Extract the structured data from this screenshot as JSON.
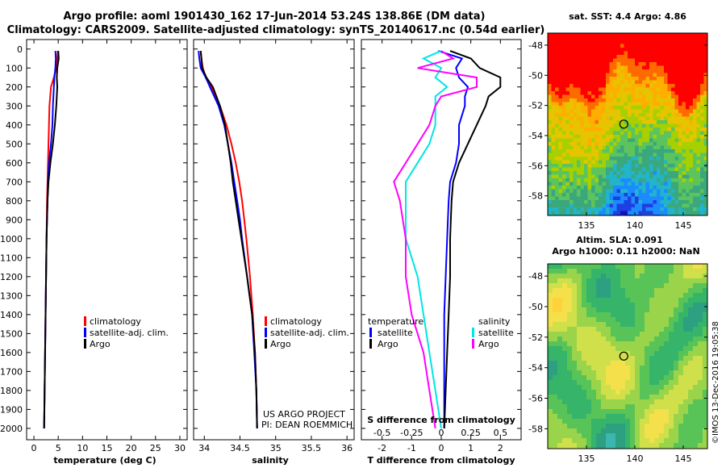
{
  "header": {
    "line1": "Argo profile: aoml 1901430_162 17-Jun-2014 53.24S 138.86E (DM data)",
    "line2": "Climatology: CARS2009. Satellite-adjusted climatology: synTS_20140617.nc (0.54d earlier)"
  },
  "colors": {
    "climatology": "#ff0000",
    "satellite": "#0000ff",
    "argo": "#000000",
    "satellite_s": "#00e5e5",
    "argo_s": "#ff00ff"
  },
  "depth_axis": {
    "ticks": [
      0,
      100,
      200,
      300,
      400,
      500,
      600,
      700,
      800,
      900,
      1000,
      1100,
      1200,
      1300,
      1400,
      1500,
      1600,
      1700,
      1800,
      1900,
      2000
    ],
    "range": [
      -50,
      2060
    ]
  },
  "chart_data": [
    {
      "type": "line",
      "id": "temperature",
      "xlabel": "temperature (deg C)",
      "xlim": [
        -1.5,
        31.5
      ],
      "xticks": [
        0,
        5,
        10,
        15,
        20,
        25,
        30
      ],
      "legend": [
        "climatology",
        "satellite-adj. clim.",
        "Argo"
      ],
      "depth": [
        10,
        50,
        100,
        150,
        200,
        300,
        400,
        500,
        600,
        700,
        800,
        1000,
        1200,
        1400,
        1600,
        1800,
        2000
      ],
      "series": [
        {
          "name": "climatology",
          "values": [
            4.9,
            4.8,
            4.6,
            4.1,
            3.5,
            3.2,
            3.1,
            3.0,
            2.9,
            2.8,
            2.7,
            2.6,
            2.5,
            2.4,
            2.3,
            2.2,
            2.1
          ]
        },
        {
          "name": "satellite-adj. clim.",
          "values": [
            4.4,
            4.5,
            4.4,
            4.2,
            4.1,
            3.9,
            3.8,
            3.5,
            3.1,
            2.9,
            2.8,
            2.6,
            2.5,
            2.4,
            2.3,
            2.2,
            2.1
          ]
        },
        {
          "name": "Argo",
          "values": [
            5.0,
            5.1,
            4.8,
            4.7,
            4.8,
            4.6,
            4.3,
            3.9,
            3.4,
            3.0,
            2.8,
            2.6,
            2.5,
            2.4,
            2.3,
            2.2,
            2.1
          ]
        }
      ]
    },
    {
      "type": "line",
      "id": "salinity",
      "xlabel": "salinity",
      "xlim": [
        33.85,
        36.1
      ],
      "xticks": [
        34,
        34.5,
        35,
        35.5,
        36
      ],
      "xticklabels": [
        "34",
        "34.5",
        "35",
        "35.5",
        "36"
      ],
      "legend": [
        "climatology",
        "satellite-adj. clim.",
        "Argo"
      ],
      "depth": [
        10,
        50,
        100,
        150,
        200,
        300,
        400,
        500,
        600,
        700,
        800,
        900,
        1000,
        1200,
        1400,
        1600,
        1800,
        2000
      ],
      "series": [
        {
          "name": "climatology",
          "values": [
            33.95,
            33.96,
            33.98,
            34.02,
            34.1,
            34.22,
            34.31,
            34.38,
            34.44,
            34.49,
            34.53,
            34.56,
            34.59,
            34.64,
            34.68,
            34.71,
            34.73,
            34.74
          ]
        },
        {
          "name": "satellite-adj. clim.",
          "values": [
            33.92,
            33.93,
            33.95,
            34.02,
            34.08,
            34.2,
            34.28,
            34.33,
            34.38,
            34.42,
            34.46,
            34.5,
            34.53,
            34.6,
            34.67,
            34.7,
            34.73,
            34.74
          ]
        },
        {
          "name": "Argo",
          "values": [
            33.95,
            33.96,
            33.97,
            34.03,
            34.12,
            34.22,
            34.29,
            34.33,
            34.37,
            34.4,
            34.44,
            34.48,
            34.52,
            34.6,
            34.67,
            34.71,
            34.73,
            34.74
          ]
        }
      ]
    },
    {
      "type": "line",
      "id": "difference",
      "xlabel": "T difference from climatology",
      "sublabel": "S difference from climatology",
      "xlim": [
        -2.7,
        2.7
      ],
      "xticks": [
        -2,
        -1,
        0,
        1,
        2
      ],
      "s_ticks": [
        "-0.5",
        "-0.25",
        "0",
        "0.25",
        "0.5"
      ],
      "legend_left_title": "temperature",
      "legend_right_title": "salinity",
      "legend_left": [
        "satellite",
        "Argo"
      ],
      "legend_right": [
        "satellite",
        "Argo"
      ],
      "depth": [
        10,
        50,
        100,
        150,
        200,
        250,
        300,
        400,
        500,
        600,
        700,
        800,
        1000,
        1200,
        1400,
        1600,
        1800,
        2000
      ],
      "series": [
        {
          "name": "T satellite",
          "values": [
            -0.1,
            0.7,
            0.5,
            0.6,
            0.9,
            0.8,
            0.8,
            0.6,
            0.6,
            0.5,
            0.3,
            0.25,
            0.2,
            0.15,
            0.1,
            0.1,
            0.1,
            0.1
          ]
        },
        {
          "name": "T Argo",
          "values": [
            0.3,
            1.0,
            1.3,
            2.0,
            2.0,
            1.6,
            1.5,
            1.2,
            0.9,
            0.6,
            0.4,
            0.35,
            0.3,
            0.3,
            0.25,
            0.2,
            0.15,
            0.1
          ]
        },
        {
          "name": "S satellite",
          "values": [
            0.0,
            -0.15,
            0.0,
            -0.05,
            0.05,
            -0.05,
            -0.05,
            -0.05,
            -0.1,
            -0.2,
            -0.3,
            -0.3,
            -0.3,
            -0.2,
            -0.15,
            -0.1,
            -0.05,
            0.0
          ]
        },
        {
          "name": "S Argo",
          "values": [
            0.0,
            0.1,
            -0.2,
            0.3,
            0.3,
            0.0,
            -0.05,
            -0.1,
            -0.2,
            -0.3,
            -0.4,
            -0.35,
            -0.3,
            -0.3,
            -0.25,
            -0.15,
            -0.1,
            -0.05
          ]
        }
      ]
    },
    {
      "type": "heatmap",
      "id": "sst_map",
      "title": "sat. SST: 4.4 Argo: 4.86",
      "xlim": [
        131,
        147.5
      ],
      "ylim": [
        -59.3,
        -47.2
      ],
      "xticks": [
        135,
        140,
        145
      ],
      "yticks": [
        -48,
        -50,
        -52,
        -54,
        -56,
        -58
      ],
      "marker": [
        138.86,
        -53.24
      ]
    },
    {
      "type": "heatmap",
      "id": "sla_map",
      "title": "Altim. SLA: 0.091",
      "subtitle": "Argo h1000: 0.11 h2000: NaN",
      "xlim": [
        131,
        147.5
      ],
      "ylim": [
        -59.3,
        -47.2
      ],
      "xticks": [
        135,
        140,
        145
      ],
      "yticks": [
        -48,
        -50,
        -52,
        -54,
        -56,
        -58
      ],
      "marker": [
        138.86,
        -53.24
      ]
    }
  ],
  "credit": {
    "line1": "US ARGO PROJECT",
    "line2": "PI: DEAN ROEMMICH"
  },
  "stamp": "©IMOS 13-Dec-2016 19:05:38"
}
